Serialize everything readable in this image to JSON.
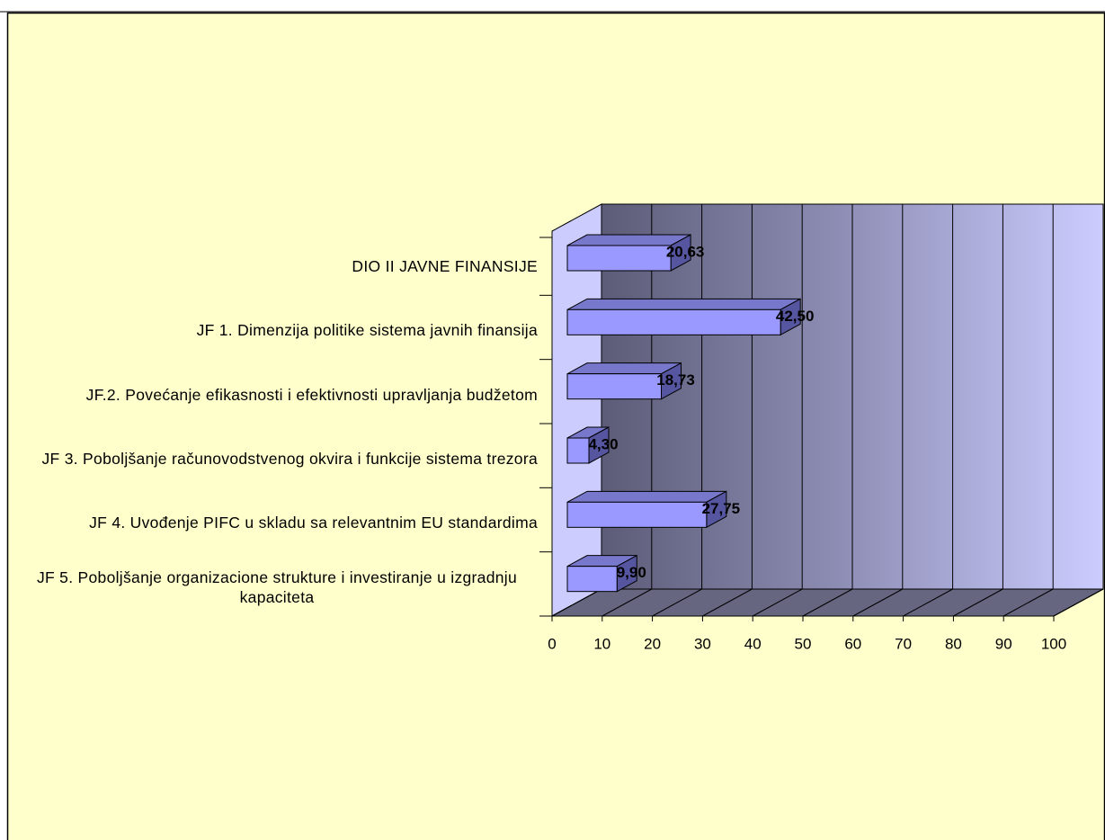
{
  "chart_data": {
    "type": "bar3d",
    "categories": [
      "DIO II JAVNE FINANSIJE",
      "JF 1. Dimenzija politike sistema javnih finansija",
      "JF.2. Povećanje efikasnosti i efektivnosti upravljanja budžetom",
      "JF 3. Poboljšanje računovodstvenog okvira i funkcije sistema trezora",
      "JF 4. Uvođenje PIFC u skladu sa relevantnim EU standardima",
      "JF 5. Poboljšanje organizacione strukture i investiranje u izgradnju kapaciteta"
    ],
    "values": [
      20.63,
      42.5,
      18.73,
      4.3,
      27.75,
      9.9
    ],
    "value_labels": [
      "20,63",
      "42,50",
      "18,73",
      "4,30",
      "27,75",
      "9,90"
    ],
    "color": "#9999ff",
    "xlim": [
      0,
      100
    ],
    "xticks": [
      0,
      10,
      20,
      30,
      40,
      50,
      60,
      70,
      80,
      90,
      100
    ],
    "grid": true
  }
}
